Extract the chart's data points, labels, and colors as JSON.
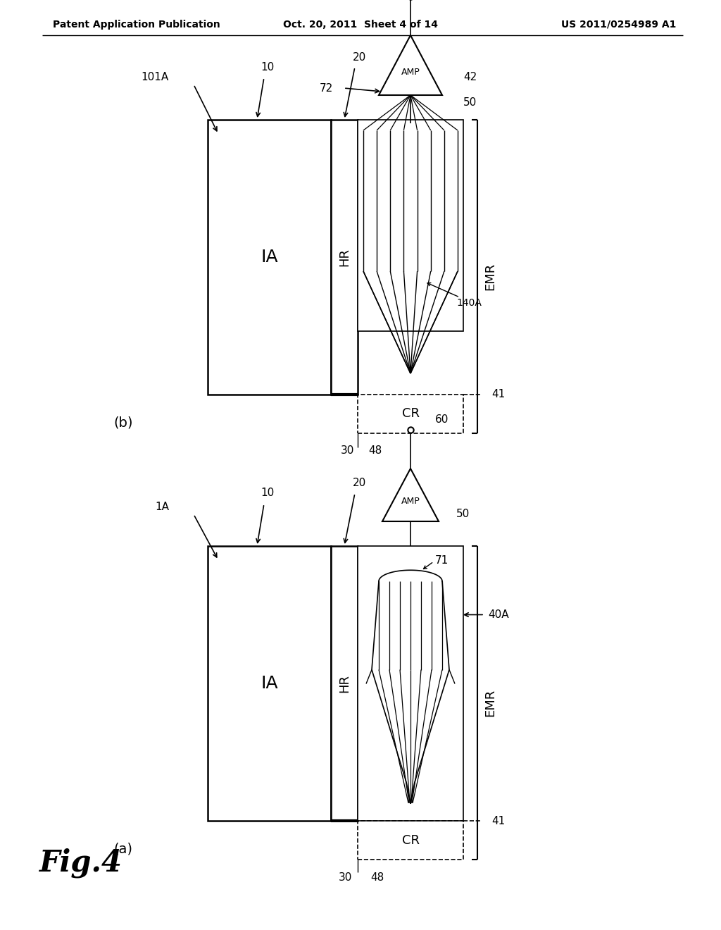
{
  "background_color": "#ffffff",
  "header_left": "Patent Application Publication",
  "header_center": "Oct. 20, 2011  Sheet 4 of 14",
  "header_right": "US 2011/0254989 A1",
  "fig_label": "Fig.4"
}
